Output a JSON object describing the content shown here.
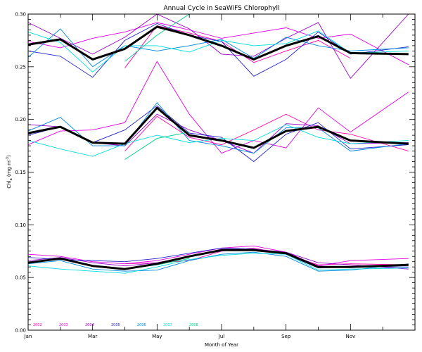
{
  "chart_data": {
    "type": "line",
    "title": "Annual Cycle in SeaWiFS Chlorophyll",
    "xlabel": "Month of Year",
    "ylabel": "Chl",
    "ylabel_sub": "a",
    "ylabel_unit": "(mg m",
    "ylabel_exp": "-3",
    "ylabel_close": ")",
    "xlim": [
      0,
      12
    ],
    "ylim": [
      0,
      0.3
    ],
    "x_tick_labels": [
      "Jan",
      "Mar",
      "May",
      "Jul",
      "Sep",
      "Nov"
    ],
    "x_tick_positions": [
      0,
      2,
      4,
      6,
      8,
      10
    ],
    "y_tick_values": [
      0.0,
      0.05,
      0.1,
      0.15,
      0.2,
      0.25,
      0.3
    ],
    "y_tick_labels": [
      "0.00",
      "0.05",
      "0.10",
      "0.15",
      "0.20",
      "0.25",
      "0.30"
    ],
    "grid": false,
    "x": [
      0,
      1,
      2,
      3,
      4,
      5,
      6,
      7,
      8,
      9,
      10,
      11.8
    ],
    "legend": [
      {
        "name": "2002",
        "color": "#ff00aa"
      },
      {
        "name": "2003",
        "color": "#e000e0"
      },
      {
        "name": "2004",
        "color": "#9900cc"
      },
      {
        "name": "2005",
        "color": "#2222cc"
      },
      {
        "name": "2006",
        "color": "#0088dd"
      },
      {
        "name": "2007",
        "color": "#00dddd"
      },
      {
        "name": "2008",
        "color": "#00cc88"
      }
    ],
    "groups": [
      {
        "mean": [
          0.271,
          0.276,
          0.257,
          0.267,
          0.288,
          0.28,
          0.27,
          0.257,
          0.27,
          0.279,
          0.263,
          0.262
        ],
        "series": [
          {
            "name": "2002",
            "values": [
              null,
              null,
              null,
              0.249,
              0.289,
              0.282,
              0.274,
              0.254,
              0.265,
              0.275,
              0.258,
              null
            ]
          },
          {
            "name": "2003",
            "values": [
              0.274,
              0.268,
              0.277,
              0.283,
              0.292,
              0.285,
              0.277,
              0.282,
              0.287,
              0.277,
              0.281,
              0.252
            ]
          },
          {
            "name": "2004",
            "values": [
              0.292,
              0.277,
              0.262,
              0.278,
              0.3,
              0.286,
              0.262,
              0.26,
              0.277,
              0.292,
              0.239,
              0.3
            ]
          },
          {
            "name": "2005",
            "values": [
              0.265,
              0.26,
              0.24,
              0.275,
              0.291,
              0.28,
              0.274,
              0.241,
              0.257,
              0.283,
              0.262,
              0.269
            ]
          },
          {
            "name": "2006",
            "values": [
              0.259,
              0.286,
              0.25,
              0.27,
              0.265,
              0.27,
              0.276,
              0.258,
              0.278,
              0.27,
              0.265,
              0.268
            ]
          },
          {
            "name": "2007",
            "values": [
              0.283,
              0.273,
              0.245,
              0.27,
              0.27,
              0.264,
              0.275,
              0.27,
              0.272,
              0.284,
              0.263,
              0.265
            ]
          },
          {
            "name": "2008",
            "values": [
              null,
              null,
              null,
              0.255,
              0.28,
              0.3,
              null,
              null,
              null,
              null,
              null,
              null
            ]
          }
        ]
      },
      {
        "mean": [
          0.187,
          0.193,
          0.178,
          0.177,
          0.211,
          0.185,
          0.18,
          0.173,
          0.189,
          0.193,
          0.18,
          0.177
        ],
        "series": [
          {
            "name": "2002",
            "values": [
              null,
              null,
              null,
              0.17,
              0.203,
              0.183,
              0.176,
              0.19,
              0.205,
              0.19,
              0.186,
              0.17
            ]
          },
          {
            "name": "2003",
            "values": [
              0.176,
              0.189,
              0.19,
              0.197,
              0.255,
              0.205,
              0.168,
              0.18,
              0.173,
              0.211,
              0.188,
              0.226
            ]
          },
          {
            "name": "2004",
            "values": [
              0.195,
              0.193,
              0.178,
              0.175,
              0.205,
              0.19,
              0.18,
              0.168,
              0.196,
              0.194,
              0.177,
              0.178
            ]
          },
          {
            "name": "2005",
            "values": [
              0.185,
              0.193,
              0.178,
              0.19,
              0.213,
              0.187,
              0.183,
              0.16,
              0.186,
              0.197,
              0.172,
              0.176
            ]
          },
          {
            "name": "2006",
            "values": [
              0.189,
              0.202,
              0.175,
              0.175,
              0.216,
              0.18,
              0.175,
              0.168,
              0.192,
              0.192,
              0.17,
              0.177
            ]
          },
          {
            "name": "2007",
            "values": [
              0.18,
              0.172,
              0.165,
              0.177,
              0.185,
              0.178,
              0.182,
              0.18,
              0.195,
              0.183,
              0.177,
              0.18
            ]
          },
          {
            "name": "2008",
            "values": [
              null,
              null,
              null,
              0.162,
              0.182,
              0.188,
              null,
              null,
              null,
              null,
              null,
              null
            ]
          }
        ]
      },
      {
        "mean": [
          0.064,
          0.068,
          0.061,
          0.058,
          0.063,
          0.07,
          0.076,
          0.076,
          0.073,
          0.06,
          0.06,
          0.062
        ],
        "series": [
          {
            "name": "2002",
            "values": [
              null,
              null,
              null,
              0.063,
              0.064,
              0.066,
              0.075,
              0.078,
              0.072,
              0.062,
              0.063,
              0.062
            ]
          },
          {
            "name": "2003",
            "values": [
              0.072,
              0.07,
              0.065,
              0.063,
              0.066,
              0.072,
              0.078,
              0.08,
              0.074,
              0.061,
              0.066,
              0.068
            ]
          },
          {
            "name": "2004",
            "values": [
              0.066,
              0.069,
              0.064,
              0.061,
              0.064,
              0.07,
              0.077,
              0.077,
              0.074,
              0.064,
              0.062,
              0.058
            ]
          },
          {
            "name": "2005",
            "values": [
              0.069,
              0.067,
              0.066,
              0.065,
              0.068,
              0.073,
              0.078,
              0.077,
              0.072,
              0.059,
              0.06,
              0.06
            ]
          },
          {
            "name": "2006",
            "values": [
              0.063,
              0.066,
              0.058,
              0.056,
              0.057,
              0.066,
              0.072,
              0.074,
              0.07,
              0.056,
              0.057,
              0.063
            ]
          },
          {
            "name": "2007",
            "values": [
              0.061,
              0.058,
              0.056,
              0.054,
              0.06,
              0.067,
              0.071,
              0.073,
              0.072,
              0.057,
              0.058,
              0.059
            ]
          },
          {
            "name": "2008",
            "values": [
              null,
              null,
              null,
              0.058,
              0.062,
              0.068,
              null,
              null,
              null,
              null,
              null,
              null
            ]
          }
        ]
      }
    ]
  }
}
